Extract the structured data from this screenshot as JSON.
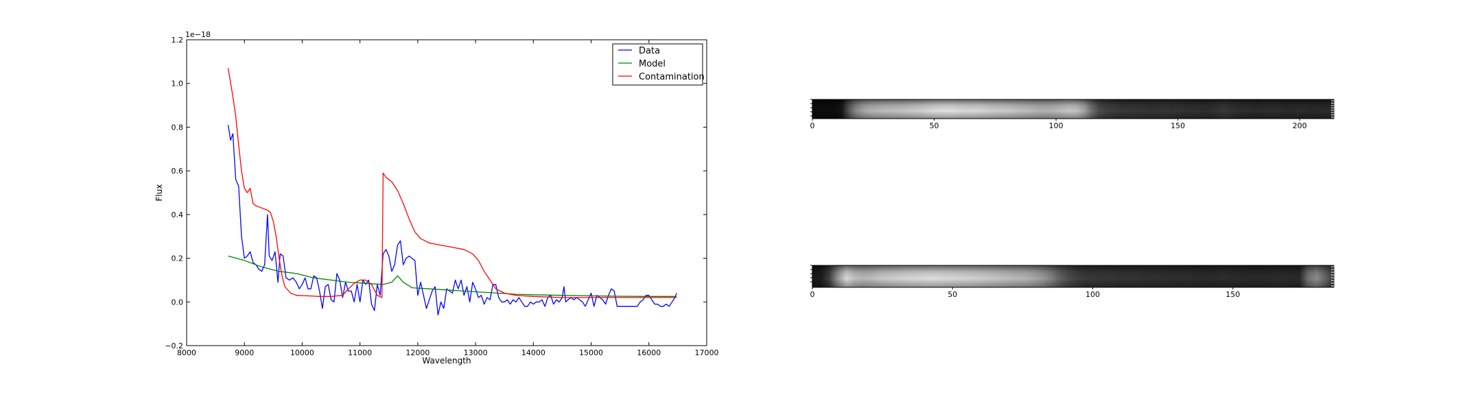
{
  "chart_data": [
    {
      "type": "line",
      "xlabel": "Wavelength",
      "ylabel": "Flux",
      "offset_text": "1e−18",
      "xlim": [
        8000,
        17000
      ],
      "ylim": [
        -0.2,
        1.2
      ],
      "xticks": [
        "8000",
        "9000",
        "10000",
        "11000",
        "12000",
        "13000",
        "14000",
        "15000",
        "16000",
        "17000"
      ],
      "yticks": [
        "−0.2",
        "0.0",
        "0.2",
        "0.4",
        "0.6",
        "0.8",
        "1.0",
        "1.2"
      ],
      "ytick_values": [
        -0.2,
        0.0,
        0.2,
        0.4,
        0.6,
        0.8,
        1.0,
        1.2
      ],
      "legend_position": "top-right",
      "series": [
        {
          "name": "Data",
          "color": "#0000ff",
          "points": [
            [
              8720,
              0.81
            ],
            [
              8760,
              0.74
            ],
            [
              8800,
              0.77
            ],
            [
              8850,
              0.56
            ],
            [
              8900,
              0.53
            ],
            [
              8950,
              0.3
            ],
            [
              9000,
              0.2
            ],
            [
              9050,
              0.21
            ],
            [
              9100,
              0.23
            ],
            [
              9150,
              0.18
            ],
            [
              9200,
              0.17
            ],
            [
              9250,
              0.15
            ],
            [
              9300,
              0.14
            ],
            [
              9350,
              0.17
            ],
            [
              9400,
              0.4
            ],
            [
              9430,
              0.21
            ],
            [
              9480,
              0.19
            ],
            [
              9530,
              0.23
            ],
            [
              9580,
              0.09
            ],
            [
              9620,
              0.22
            ],
            [
              9670,
              0.21
            ],
            [
              9720,
              0.11
            ],
            [
              9780,
              0.1
            ],
            [
              9840,
              0.11
            ],
            [
              9900,
              0.09
            ],
            [
              9950,
              0.06
            ],
            [
              10000,
              0.08
            ],
            [
              10050,
              0.11
            ],
            [
              10100,
              0.06
            ],
            [
              10150,
              0.06
            ],
            [
              10200,
              0.12
            ],
            [
              10250,
              0.11
            ],
            [
              10300,
              0.05
            ],
            [
              10350,
              -0.03
            ],
            [
              10400,
              0.07
            ],
            [
              10450,
              0.08
            ],
            [
              10500,
              0.01
            ],
            [
              10550,
              0.0
            ],
            [
              10600,
              0.13
            ],
            [
              10650,
              0.1
            ],
            [
              10700,
              0.02
            ],
            [
              10750,
              0.09
            ],
            [
              10800,
              0.05
            ],
            [
              10850,
              0.05
            ],
            [
              10900,
              0.0
            ],
            [
              10950,
              0.08
            ],
            [
              11000,
              0.0
            ],
            [
              11050,
              0.1
            ],
            [
              11100,
              0.08
            ],
            [
              11150,
              0.1
            ],
            [
              11200,
              -0.01
            ],
            [
              11250,
              -0.04
            ],
            [
              11300,
              0.08
            ],
            [
              11350,
              0.03
            ],
            [
              11400,
              0.22
            ],
            [
              11450,
              0.24
            ],
            [
              11500,
              0.21
            ],
            [
              11550,
              0.14
            ],
            [
              11600,
              0.17
            ],
            [
              11650,
              0.26
            ],
            [
              11700,
              0.28
            ],
            [
              11750,
              0.17
            ],
            [
              11800,
              0.2
            ],
            [
              11850,
              0.21
            ],
            [
              11900,
              0.2
            ],
            [
              11950,
              0.19
            ],
            [
              12000,
              0.03
            ],
            [
              12050,
              0.09
            ],
            [
              12100,
              0.03
            ],
            [
              12150,
              -0.03
            ],
            [
              12200,
              0.01
            ],
            [
              12250,
              0.05
            ],
            [
              12300,
              0.07
            ],
            [
              12350,
              -0.06
            ],
            [
              12400,
              0.0
            ],
            [
              12450,
              -0.03
            ],
            [
              12500,
              0.06
            ],
            [
              12550,
              0.05
            ],
            [
              12600,
              0.04
            ],
            [
              12650,
              0.1
            ],
            [
              12700,
              0.06
            ],
            [
              12750,
              0.1
            ],
            [
              12800,
              0.03
            ],
            [
              12850,
              0.07
            ],
            [
              12900,
              0.0
            ],
            [
              12950,
              0.09
            ],
            [
              13000,
              0.06
            ],
            [
              13050,
              0.02
            ],
            [
              13100,
              0.03
            ],
            [
              13150,
              -0.01
            ],
            [
              13200,
              0.02
            ],
            [
              13250,
              0.01
            ],
            [
              13300,
              0.08
            ],
            [
              13350,
              0.08
            ],
            [
              13400,
              0.02
            ],
            [
              13450,
              0.0
            ],
            [
              13500,
              0.0
            ],
            [
              13550,
              0.01
            ],
            [
              13600,
              -0.01
            ],
            [
              13650,
              0.01
            ],
            [
              13700,
              0.0
            ],
            [
              13750,
              0.02
            ],
            [
              13800,
              0.0
            ],
            [
              13850,
              -0.02
            ],
            [
              13900,
              -0.02
            ],
            [
              13950,
              0.0
            ],
            [
              14000,
              -0.01
            ],
            [
              14050,
              0.0
            ],
            [
              14100,
              0.0
            ],
            [
              14150,
              0.01
            ],
            [
              14200,
              -0.02
            ],
            [
              14250,
              0.02
            ],
            [
              14300,
              0.03
            ],
            [
              14350,
              -0.01
            ],
            [
              14400,
              0.01
            ],
            [
              14450,
              0.0
            ],
            [
              14500,
              0.02
            ],
            [
              14530,
              0.07
            ],
            [
              14560,
              0.0
            ],
            [
              14600,
              0.01
            ],
            [
              14650,
              0.02
            ],
            [
              14700,
              0.01
            ],
            [
              14750,
              0.02
            ],
            [
              14800,
              0.01
            ],
            [
              14850,
              0.0
            ],
            [
              14900,
              -0.02
            ],
            [
              14950,
              0.01
            ],
            [
              15000,
              0.04
            ],
            [
              15050,
              -0.02
            ],
            [
              15100,
              0.03
            ],
            [
              15150,
              0.02
            ],
            [
              15200,
              0.01
            ],
            [
              15250,
              -0.01
            ],
            [
              15300,
              0.03
            ],
            [
              15350,
              0.06
            ],
            [
              15400,
              0.05
            ],
            [
              15450,
              -0.02
            ],
            [
              15500,
              -0.02
            ],
            [
              15600,
              -0.02
            ],
            [
              15700,
              -0.02
            ],
            [
              15800,
              -0.02
            ],
            [
              15850,
              0.0
            ],
            [
              15900,
              0.01
            ],
            [
              15950,
              0.03
            ],
            [
              16000,
              0.03
            ],
            [
              16050,
              0.01
            ],
            [
              16100,
              -0.01
            ],
            [
              16150,
              -0.01
            ],
            [
              16200,
              -0.02
            ],
            [
              16250,
              -0.02
            ],
            [
              16300,
              -0.01
            ],
            [
              16350,
              -0.02
            ],
            [
              16400,
              0.0
            ],
            [
              16450,
              0.02
            ],
            [
              16480,
              0.04
            ]
          ]
        },
        {
          "name": "Model",
          "color": "#008000",
          "points": [
            [
              8720,
              0.21
            ],
            [
              9000,
              0.19
            ],
            [
              9300,
              0.16
            ],
            [
              9600,
              0.14
            ],
            [
              9900,
              0.13
            ],
            [
              10200,
              0.11
            ],
            [
              10500,
              0.1
            ],
            [
              10800,
              0.09
            ],
            [
              11100,
              0.085
            ],
            [
              11400,
              0.08
            ],
            [
              11550,
              0.09
            ],
            [
              11650,
              0.12
            ],
            [
              11750,
              0.09
            ],
            [
              11900,
              0.065
            ],
            [
              12200,
              0.06
            ],
            [
              12500,
              0.055
            ],
            [
              12800,
              0.05
            ],
            [
              13100,
              0.045
            ],
            [
              13400,
              0.04
            ],
            [
              13700,
              0.035
            ],
            [
              14000,
              0.033
            ],
            [
              14500,
              0.03
            ],
            [
              15000,
              0.028
            ],
            [
              15500,
              0.026
            ],
            [
              16000,
              0.025
            ],
            [
              16480,
              0.025
            ]
          ]
        },
        {
          "name": "Contamination",
          "color": "#ff0000",
          "points": [
            [
              8720,
              1.07
            ],
            [
              8800,
              0.94
            ],
            [
              8850,
              0.85
            ],
            [
              8900,
              0.72
            ],
            [
              8950,
              0.6
            ],
            [
              9000,
              0.52
            ],
            [
              9050,
              0.5
            ],
            [
              9100,
              0.52
            ],
            [
              9150,
              0.45
            ],
            [
              9200,
              0.44
            ],
            [
              9300,
              0.43
            ],
            [
              9400,
              0.42
            ],
            [
              9450,
              0.41
            ],
            [
              9500,
              0.37
            ],
            [
              9550,
              0.3
            ],
            [
              9600,
              0.2
            ],
            [
              9650,
              0.12
            ],
            [
              9700,
              0.07
            ],
            [
              9800,
              0.04
            ],
            [
              9900,
              0.03
            ],
            [
              10100,
              0.028
            ],
            [
              10300,
              0.025
            ],
            [
              10500,
              0.025
            ],
            [
              10700,
              0.03
            ],
            [
              10800,
              0.06
            ],
            [
              10900,
              0.085
            ],
            [
              11000,
              0.1
            ],
            [
              11100,
              0.1
            ],
            [
              11200,
              0.08
            ],
            [
              11300,
              0.03
            ],
            [
              11380,
              0.02
            ],
            [
              11400,
              0.59
            ],
            [
              11450,
              0.57
            ],
            [
              11550,
              0.55
            ],
            [
              11650,
              0.51
            ],
            [
              11750,
              0.45
            ],
            [
              11850,
              0.38
            ],
            [
              11950,
              0.32
            ],
            [
              12050,
              0.29
            ],
            [
              12200,
              0.27
            ],
            [
              12400,
              0.26
            ],
            [
              12600,
              0.25
            ],
            [
              12800,
              0.24
            ],
            [
              12950,
              0.22
            ],
            [
              13050,
              0.19
            ],
            [
              13150,
              0.14
            ],
            [
              13250,
              0.1
            ],
            [
              13350,
              0.06
            ],
            [
              13500,
              0.04
            ],
            [
              13700,
              0.03
            ],
            [
              14000,
              0.025
            ],
            [
              14500,
              0.02
            ],
            [
              15000,
              0.02
            ],
            [
              15500,
              0.02
            ],
            [
              16000,
              0.02
            ],
            [
              16480,
              0.02
            ]
          ]
        }
      ]
    },
    {
      "type": "heatmap",
      "colormap": "gray",
      "xlim": [
        0,
        214
      ],
      "xticks": [
        "0",
        "50",
        "100",
        "150",
        "200"
      ],
      "xtick_values": [
        0,
        50,
        100,
        150,
        200
      ],
      "profile": [
        0.05,
        0.05,
        0.05,
        0.05,
        0.08,
        0.35,
        0.55,
        0.65,
        0.7,
        0.72,
        0.74,
        0.75,
        0.76,
        0.78,
        0.8,
        0.82,
        0.85,
        0.87,
        0.88,
        0.88,
        0.86,
        0.85,
        0.85,
        0.84,
        0.82,
        0.8,
        0.8,
        0.78,
        0.76,
        0.74,
        0.72,
        0.7,
        0.7,
        0.72,
        0.75,
        0.78,
        0.76,
        0.65,
        0.45,
        0.3,
        0.26,
        0.24,
        0.22,
        0.22,
        0.21,
        0.21,
        0.2,
        0.2,
        0.21,
        0.2,
        0.2,
        0.19,
        0.19,
        0.18,
        0.18,
        0.2,
        0.22,
        0.2,
        0.18,
        0.18,
        0.17,
        0.17,
        0.18,
        0.18,
        0.17,
        0.16,
        0.17,
        0.17,
        0.16,
        0.16,
        0.17,
        0.17
      ]
    },
    {
      "type": "heatmap",
      "colormap": "gray",
      "xlim": [
        0,
        186
      ],
      "xticks": [
        "0",
        "50",
        "100",
        "150"
      ],
      "xtick_values": [
        0,
        50,
        100,
        150
      ],
      "profile": [
        0.1,
        0.1,
        0.25,
        0.6,
        0.85,
        0.75,
        0.72,
        0.74,
        0.78,
        0.8,
        0.82,
        0.84,
        0.85,
        0.86,
        0.87,
        0.86,
        0.85,
        0.84,
        0.83,
        0.82,
        0.8,
        0.78,
        0.76,
        0.74,
        0.72,
        0.7,
        0.66,
        0.6,
        0.5,
        0.38,
        0.3,
        0.25,
        0.22,
        0.22,
        0.21,
        0.21,
        0.2,
        0.2,
        0.2,
        0.19,
        0.19,
        0.19,
        0.18,
        0.18,
        0.18,
        0.17,
        0.17,
        0.17,
        0.18,
        0.17,
        0.17,
        0.16,
        0.16,
        0.16,
        0.17,
        0.17,
        0.16,
        0.16,
        0.45,
        0.55,
        0.4,
        0.22
      ]
    }
  ]
}
